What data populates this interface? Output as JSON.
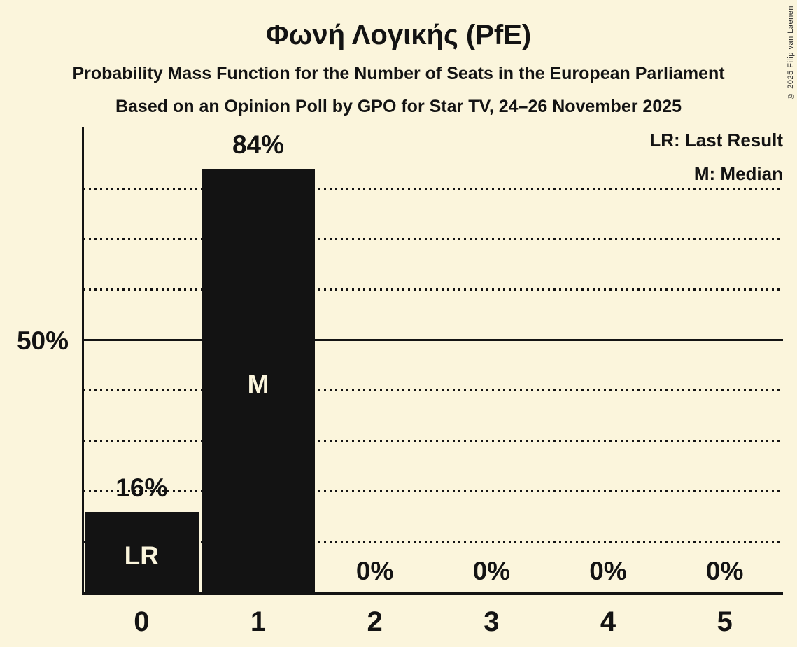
{
  "title": "Φωνή Λογικής (PfE)",
  "subtitle1": "Probability Mass Function for the Number of Seats in the European Parliament",
  "subtitle2": "Based on an Opinion Poll by GPO for Star TV, 24–26 November 2025",
  "copyright": "© 2025 Filip van Laenen",
  "legend": {
    "lr": "LR: Last Result",
    "m": "M: Median"
  },
  "y_axis": {
    "label": "50%"
  },
  "colors": {
    "background": "#FBF5DC",
    "bar": "#131313",
    "text": "#131313",
    "bar_label_text": "#FBF5DC"
  },
  "chart_data": {
    "type": "bar",
    "title": "Φωνή Λογικής (PfE)",
    "xlabel": "",
    "ylabel": "",
    "categories": [
      "0",
      "1",
      "2",
      "3",
      "4",
      "5"
    ],
    "values": [
      16,
      84,
      0,
      0,
      0,
      0
    ],
    "value_labels": [
      "16%",
      "84%",
      "0%",
      "0%",
      "0%",
      "0%"
    ],
    "bar_annotations": [
      "LR",
      "M",
      "",
      "",
      "",
      ""
    ],
    "ylim": [
      0,
      100
    ],
    "solid_gridline_pct": 50,
    "dotted_gridlines_pct": [
      10,
      20,
      30,
      40,
      60,
      70,
      80
    ],
    "grid": "dotted-horizontal",
    "legend_position": "top-right"
  }
}
